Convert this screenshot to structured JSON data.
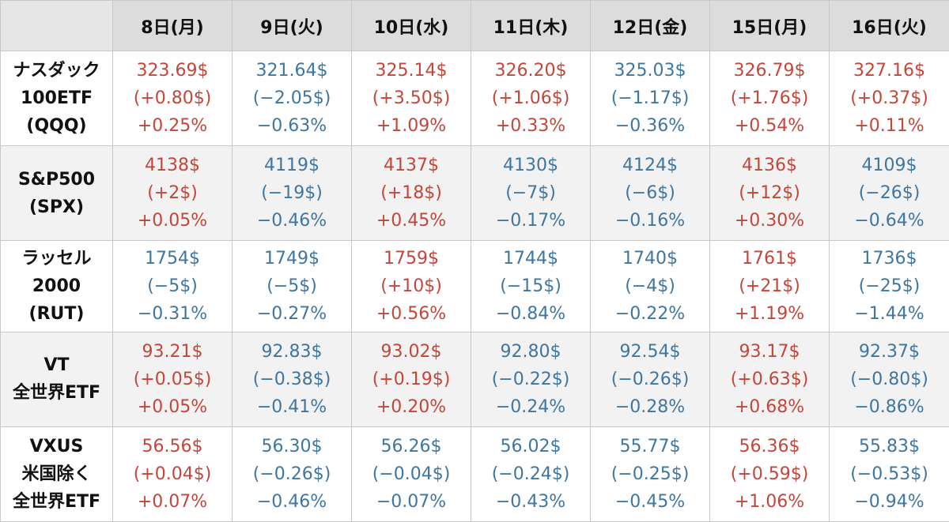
{
  "columns": [
    "8日(月)",
    "9日(火)",
    "10日(水)",
    "11日(木)",
    "12日(金)",
    "15日(月)",
    "16日(火)"
  ],
  "colors": {
    "up": "#c4463a",
    "down": "#3e76a2"
  },
  "rows": [
    {
      "label": [
        "ナスダック",
        "100ETF",
        "(QQQ)"
      ],
      "cells": [
        {
          "dir": "up",
          "price": "323.69$",
          "change": "(+0.80$)",
          "pct": "+0.25%"
        },
        {
          "dir": "down",
          "price": "321.64$",
          "change": "(−2.05$)",
          "pct": "−0.63%"
        },
        {
          "dir": "up",
          "price": "325.14$",
          "change": "(+3.50$)",
          "pct": "+1.09%"
        },
        {
          "dir": "up",
          "price": "326.20$",
          "change": "(+1.06$)",
          "pct": "+0.33%"
        },
        {
          "dir": "down",
          "price": "325.03$",
          "change": "(−1.17$)",
          "pct": "−0.36%"
        },
        {
          "dir": "up",
          "price": "326.79$",
          "change": "(+1.76$)",
          "pct": "+0.54%"
        },
        {
          "dir": "up",
          "price": "327.16$",
          "change": "(+0.37$)",
          "pct": "+0.11%"
        }
      ]
    },
    {
      "label": [
        "S&P500",
        "(SPX)"
      ],
      "cells": [
        {
          "dir": "up",
          "price": "4138$",
          "change": "(+2$)",
          "pct": "+0.05%"
        },
        {
          "dir": "down",
          "price": "4119$",
          "change": "(−19$)",
          "pct": "−0.46%"
        },
        {
          "dir": "up",
          "price": "4137$",
          "change": "(+18$)",
          "pct": "+0.45%"
        },
        {
          "dir": "down",
          "price": "4130$",
          "change": "(−7$)",
          "pct": "−0.17%"
        },
        {
          "dir": "down",
          "price": "4124$",
          "change": "(−6$)",
          "pct": "−0.16%"
        },
        {
          "dir": "up",
          "price": "4136$",
          "change": "(+12$)",
          "pct": "+0.30%"
        },
        {
          "dir": "down",
          "price": "4109$",
          "change": "(−26$)",
          "pct": "−0.64%"
        }
      ]
    },
    {
      "label": [
        "ラッセル",
        "2000",
        "(RUT)"
      ],
      "cells": [
        {
          "dir": "down",
          "price": "1754$",
          "change": "(−5$)",
          "pct": "−0.31%"
        },
        {
          "dir": "down",
          "price": "1749$",
          "change": "(−5$)",
          "pct": "−0.27%"
        },
        {
          "dir": "up",
          "price": "1759$",
          "change": "(+10$)",
          "pct": "+0.56%"
        },
        {
          "dir": "down",
          "price": "1744$",
          "change": "(−15$)",
          "pct": "−0.84%"
        },
        {
          "dir": "down",
          "price": "1740$",
          "change": "(−4$)",
          "pct": "−0.22%"
        },
        {
          "dir": "up",
          "price": "1761$",
          "change": "(+21$)",
          "pct": "+1.19%"
        },
        {
          "dir": "down",
          "price": "1736$",
          "change": "(−25$)",
          "pct": "−1.44%"
        }
      ]
    },
    {
      "label": [
        "VT",
        "全世界ETF"
      ],
      "cells": [
        {
          "dir": "up",
          "price": "93.21$",
          "change": "(+0.05$)",
          "pct": "+0.05%"
        },
        {
          "dir": "down",
          "price": "92.83$",
          "change": "(−0.38$)",
          "pct": "−0.41%"
        },
        {
          "dir": "up",
          "price": "93.02$",
          "change": "(+0.19$)",
          "pct": "+0.20%"
        },
        {
          "dir": "down",
          "price": "92.80$",
          "change": "(−0.22$)",
          "pct": "−0.24%"
        },
        {
          "dir": "down",
          "price": "92.54$",
          "change": "(−0.26$)",
          "pct": "−0.28%"
        },
        {
          "dir": "up",
          "price": "93.17$",
          "change": "(+0.63$)",
          "pct": "+0.68%"
        },
        {
          "dir": "down",
          "price": "92.37$",
          "change": "(−0.80$)",
          "pct": "−0.86%"
        }
      ]
    },
    {
      "label": [
        "VXUS",
        "米国除く",
        "全世界ETF"
      ],
      "cells": [
        {
          "dir": "up",
          "price": "56.56$",
          "change": "(+0.04$)",
          "pct": "+0.07%"
        },
        {
          "dir": "down",
          "price": "56.30$",
          "change": "(−0.26$)",
          "pct": "−0.46%"
        },
        {
          "dir": "down",
          "price": "56.26$",
          "change": "(−0.04$)",
          "pct": "−0.07%"
        },
        {
          "dir": "down",
          "price": "56.02$",
          "change": "(−0.24$)",
          "pct": "−0.43%"
        },
        {
          "dir": "down",
          "price": "55.77$",
          "change": "(−0.25$)",
          "pct": "−0.45%"
        },
        {
          "dir": "up",
          "price": "56.36$",
          "change": "(+0.59$)",
          "pct": "+1.06%"
        },
        {
          "dir": "down",
          "price": "55.83$",
          "change": "(−0.53$)",
          "pct": "−0.94%"
        }
      ]
    }
  ]
}
